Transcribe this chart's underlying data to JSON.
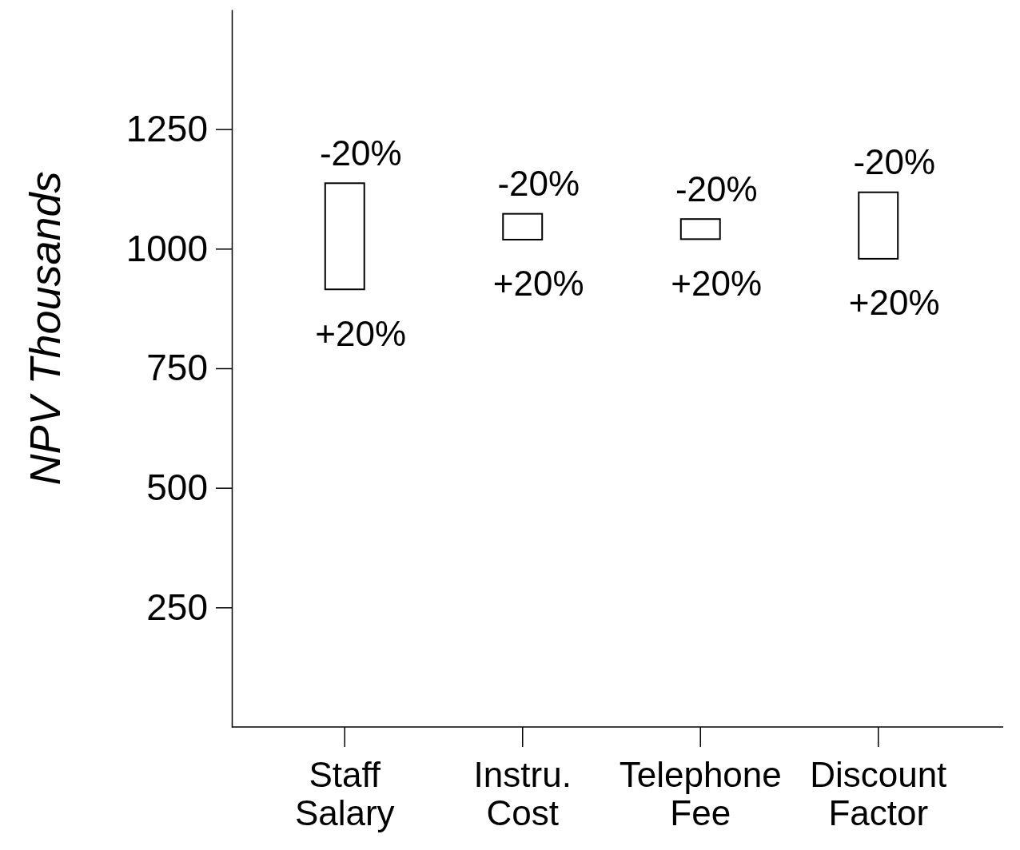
{
  "chart_data": {
    "type": "bar",
    "ylabel": "NPV Thousands",
    "categories": [
      "Staff Salary",
      "Instru. Cost",
      "Telephone Fee",
      "Discount Factor"
    ],
    "base": [
      915,
      1019,
      1020,
      979
    ],
    "values": [
      222,
      54,
      42,
      139
    ],
    "color": "#ffffff",
    "ylim": [
      0,
      1500
    ],
    "yticks": [
      250,
      500,
      750,
      1000,
      1250
    ],
    "annotations": [
      {
        "text": "-20%",
        "x": "Staff Salary",
        "y": 1137
      },
      {
        "text": "+20%",
        "x": "Staff Salary",
        "y": 915
      },
      {
        "text": "-20%",
        "x": "Instru. Cost",
        "y": 1073
      },
      {
        "text": "+20%",
        "x": "Instru. Cost",
        "y": 1019
      },
      {
        "text": "-20%",
        "x": "Telephone Fee",
        "y": 1062
      },
      {
        "text": "+20%",
        "x": "Telephone Fee",
        "y": 1020
      },
      {
        "text": "-20%",
        "x": "Discount Factor",
        "y": 1118
      },
      {
        "text": "+20%",
        "x": "Discount Factor",
        "y": 979
      }
    ]
  }
}
